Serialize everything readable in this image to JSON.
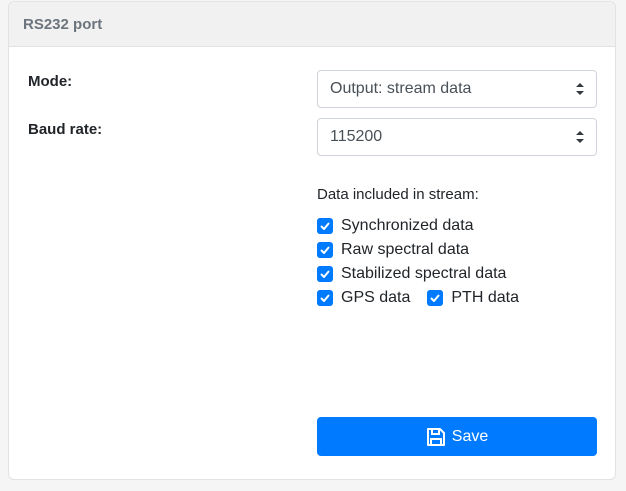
{
  "card": {
    "title": "RS232 port"
  },
  "mode": {
    "label": "Mode:",
    "value": "Output: stream data"
  },
  "baud": {
    "label": "Baud rate:",
    "value": "115200"
  },
  "stream": {
    "title": "Data included in stream:",
    "items": [
      {
        "label": "Synchronized data",
        "checked": true
      },
      {
        "label": "Raw spectral data",
        "checked": true
      },
      {
        "label": "Stabilized spectral data",
        "checked": true
      },
      {
        "label": "GPS data",
        "checked": true
      },
      {
        "label": "PTH data",
        "checked": true
      }
    ]
  },
  "save": {
    "label": "Save",
    "icon": "floppy-disk-icon"
  },
  "colors": {
    "primary": "#007bff"
  }
}
